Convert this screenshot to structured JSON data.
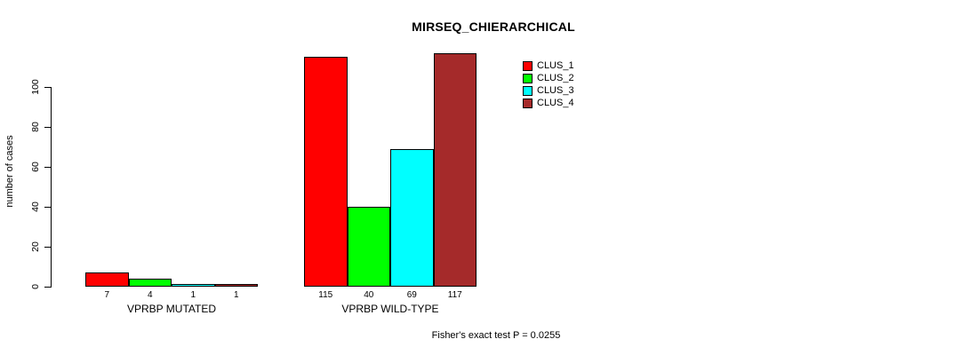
{
  "title": "MIRSEQ_CHIERARCHICAL",
  "footer_note": "Fisher's exact test P = 0.0255",
  "chart_data": {
    "type": "bar",
    "title": "MIRSEQ_CHIERARCHICAL",
    "xlabel": "",
    "ylabel": "number of cases",
    "ylim": [
      0,
      100
    ],
    "yticks": [
      0,
      20,
      40,
      60,
      80,
      100
    ],
    "grid": false,
    "legend_position": "top-right",
    "categories": [
      "VPRBP MUTATED",
      "VPRBP WILD-TYPE"
    ],
    "series": [
      {
        "name": "CLUS_1",
        "color": "#ff0000",
        "values": [
          7,
          115
        ]
      },
      {
        "name": "CLUS_2",
        "color": "#00ff00",
        "values": [
          4,
          40
        ]
      },
      {
        "name": "CLUS_3",
        "color": "#00ffff",
        "values": [
          1,
          69
        ]
      },
      {
        "name": "CLUS_4",
        "color": "#a52a2a",
        "values": [
          1,
          117
        ]
      }
    ],
    "bar_labels": [
      [
        "7",
        "4",
        "1",
        "1"
      ],
      [
        "115",
        "40",
        "69",
        "117"
      ]
    ],
    "annotation": "Fisher's exact test P = 0.0255",
    "axis_color": "#000000"
  }
}
